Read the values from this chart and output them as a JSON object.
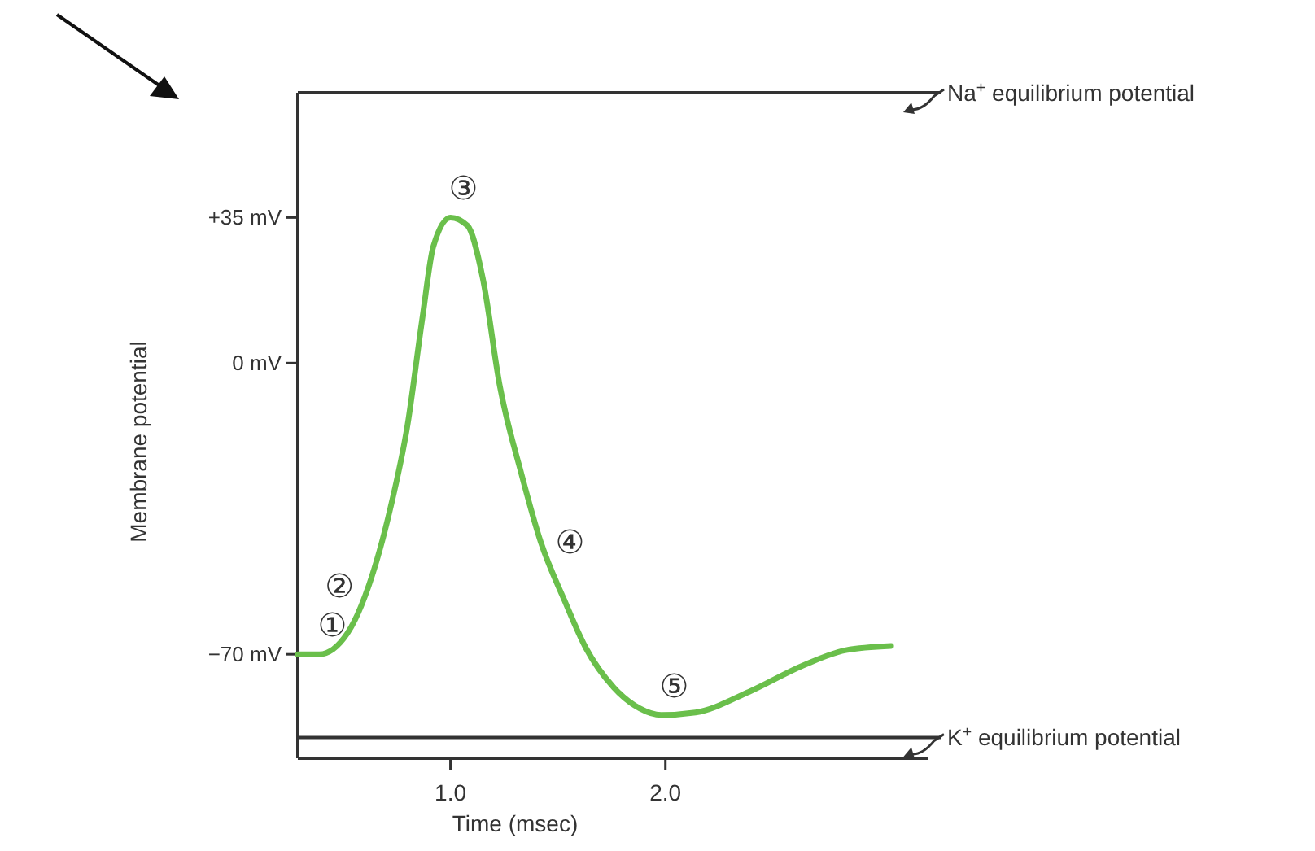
{
  "chart_data": {
    "type": "line",
    "xlabel": "Time (msec)",
    "ylabel": "Membrane potential",
    "xlim": [
      0.29,
      3.22
    ],
    "ylim": [
      -95,
      65
    ],
    "xticks": [
      {
        "value": 1,
        "label": "1.0"
      },
      {
        "value": 2,
        "label": "2.0"
      }
    ],
    "yticks": [
      {
        "value": -70,
        "label": "−70 mV"
      },
      {
        "value": 0,
        "label": "0 mV"
      },
      {
        "value": 35,
        "label": "+35 mV"
      }
    ],
    "grid": false,
    "marker": "none",
    "line_style": "solid",
    "series": [
      {
        "color": "#6abf4b",
        "x": [
          0.29,
          0.39,
          0.52,
          0.62,
          0.72,
          0.8,
          0.87,
          0.92,
          1.0,
          1.08,
          1.15,
          1.23,
          1.33,
          1.42,
          1.53,
          1.63,
          1.76,
          1.88,
          1.98,
          2.14,
          2.39,
          2.64,
          2.84,
          3.05
        ],
        "values": [
          -70,
          -70,
          -65,
          -53.5,
          -35,
          -15,
          11,
          28,
          35,
          33,
          20.5,
          -5.6,
          -26.6,
          -43,
          -57,
          -68.5,
          -78,
          -83,
          -84.6,
          -84,
          -79,
          -72.7,
          -69,
          -68
        ]
      }
    ],
    "ref_lines": [
      {
        "axis": "y",
        "value": 65,
        "label": "Na$^{+}$ equilibrium potential",
        "color": "#333333"
      },
      {
        "axis": "y",
        "value": -90,
        "label": "K$^{+}$ equilibrium potential",
        "color": "#333333"
      }
    ],
    "annotations": [
      {
        "text": "①",
        "x": 0.39,
        "y": -70
      },
      {
        "text": "②",
        "x": 0.62,
        "y": -53.5
      },
      {
        "text": "③",
        "x": 1.0,
        "y": 35
      },
      {
        "text": "④",
        "x": 1.42,
        "y": -43
      },
      {
        "text": "⑤",
        "x": 1.98,
        "y": -84.6
      }
    ]
  }
}
